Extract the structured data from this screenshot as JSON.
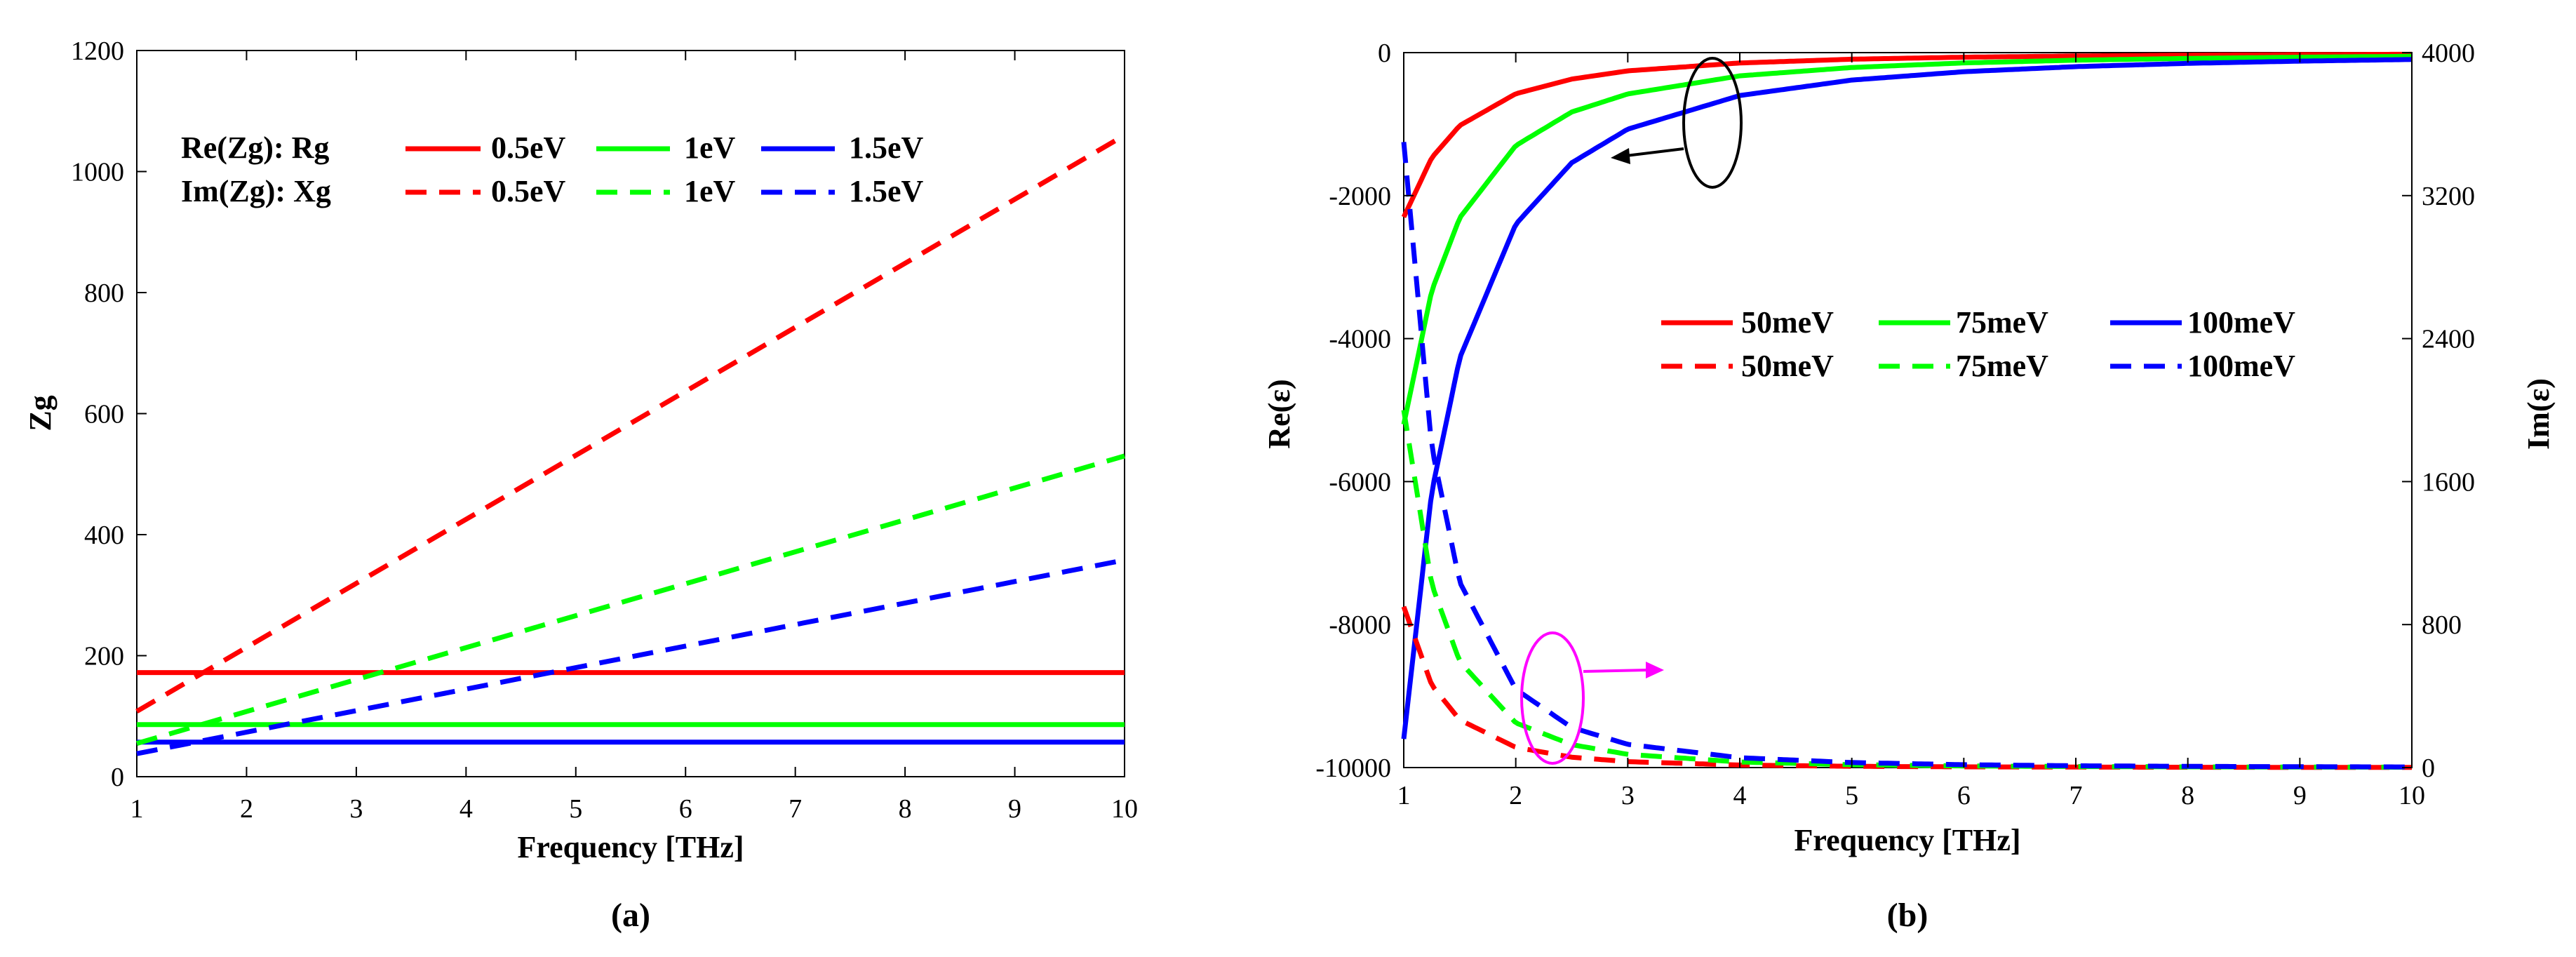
{
  "chart_data": [
    {
      "panel_label": "(a)",
      "type": "line",
      "xlabel": "Frequency [THz]",
      "ylabel": "Zg",
      "xlim": [
        1,
        10
      ],
      "ylim": [
        0,
        1200
      ],
      "xticks": [
        "1",
        "2",
        "3",
        "4",
        "5",
        "6",
        "7",
        "8",
        "9",
        "10"
      ],
      "yticks": [
        "0",
        "200",
        "400",
        "600",
        "800",
        "1000",
        "1200"
      ],
      "legend": {
        "row1_label": "Re(Zg): Rg",
        "row2_label": "Im(Zg): Xg",
        "entries": [
          "0.5eV",
          "1eV",
          "1.5eV"
        ]
      },
      "series": [
        {
          "name": "Rg 0.5eV",
          "style": "solid",
          "color": "#ff0000",
          "x": [
            1,
            10
          ],
          "y": [
            172,
            172
          ]
        },
        {
          "name": "Rg 1eV",
          "style": "solid",
          "color": "#00ff00",
          "x": [
            1,
            10
          ],
          "y": [
            86,
            86
          ]
        },
        {
          "name": "Rg 1.5eV",
          "style": "solid",
          "color": "#0000ff",
          "x": [
            1,
            10
          ],
          "y": [
            57,
            57
          ]
        },
        {
          "name": "Xg 0.5eV",
          "style": "dashed",
          "color": "#ff0000",
          "x": [
            1,
            10
          ],
          "y": [
            108,
            1060
          ]
        },
        {
          "name": "Xg 1eV",
          "style": "dashed",
          "color": "#00ff00",
          "x": [
            1,
            10
          ],
          "y": [
            55,
            530
          ]
        },
        {
          "name": "Xg 1.5eV",
          "style": "dashed",
          "color": "#0000ff",
          "x": [
            1,
            10
          ],
          "y": [
            38,
            358
          ]
        }
      ]
    },
    {
      "panel_label": "(b)",
      "type": "line",
      "xlabel": "Frequency [THz]",
      "ylabel_left": "Re(ε)",
      "ylabel_right": "Im(ε)",
      "xlim": [
        1,
        10
      ],
      "ylim_left": [
        -10000,
        0
      ],
      "ylim_right": [
        0,
        4000
      ],
      "xticks": [
        "1",
        "2",
        "3",
        "4",
        "5",
        "6",
        "7",
        "8",
        "9",
        "10"
      ],
      "yticks_left": [
        "-10000",
        "-8000",
        "-6000",
        "-4000",
        "-2000",
        "0"
      ],
      "yticks_right": [
        "0",
        "800",
        "1600",
        "2400",
        "3200",
        "4000"
      ],
      "legend": {
        "entries": [
          "50meV",
          "75meV",
          "100meV"
        ]
      },
      "series": [
        {
          "name": "Re 50meV",
          "axis": "left",
          "style": "solid",
          "color": "#ff0000",
          "x": [
            1,
            1.25,
            1.5,
            2,
            2.5,
            3,
            4,
            5,
            6,
            7,
            8,
            9,
            10
          ],
          "y": [
            -2300,
            -1470,
            -1020,
            -575,
            -370,
            -255,
            -145,
            -92,
            -64,
            -47,
            -36,
            -28,
            -23
          ]
        },
        {
          "name": "Re 75meV",
          "axis": "left",
          "style": "solid",
          "color": "#00ff00",
          "x": [
            1,
            1.25,
            1.5,
            2,
            2.5,
            3,
            4,
            5,
            6,
            7,
            8,
            9,
            10
          ],
          "y": [
            -5200,
            -3330,
            -2310,
            -1300,
            -830,
            -578,
            -325,
            -208,
            -144,
            -106,
            -81,
            -64,
            -52
          ]
        },
        {
          "name": "Re 100meV",
          "axis": "left",
          "style": "solid",
          "color": "#0000ff",
          "x": [
            1,
            1.25,
            1.5,
            2,
            2.5,
            3,
            4,
            5,
            6,
            7,
            8,
            9,
            10
          ],
          "y": [
            -9600,
            -6140,
            -4270,
            -2400,
            -1540,
            -1070,
            -600,
            -384,
            -267,
            -196,
            -150,
            -119,
            -96
          ]
        },
        {
          "name": "Im 50meV",
          "axis": "right",
          "style": "dashed",
          "color": "#ff0000",
          "x": [
            1,
            1.25,
            1.5,
            2,
            2.5,
            3,
            4,
            5,
            6,
            7,
            8,
            9,
            10
          ],
          "y": [
            900,
            461,
            267,
            113,
            58,
            33,
            14,
            7,
            4,
            2.6,
            1.8,
            1.2,
            0.9
          ]
        },
        {
          "name": "Im 75meV",
          "axis": "right",
          "style": "dashed",
          "color": "#00ff00",
          "x": [
            1,
            1.25,
            1.5,
            2,
            2.5,
            3,
            4,
            5,
            6,
            7,
            8,
            9,
            10
          ],
          "y": [
            2000,
            1024,
            593,
            250,
            128,
            74,
            31,
            16,
            9,
            5.8,
            3.9,
            2.7,
            2
          ]
        },
        {
          "name": "Im 100meV",
          "axis": "right",
          "style": "dashed",
          "color": "#0000ff",
          "x": [
            1,
            1.25,
            1.5,
            2,
            2.5,
            3,
            4,
            5,
            6,
            7,
            8,
            9,
            10
          ],
          "y": [
            3500,
            1792,
            1037,
            438,
            224,
            130,
            55,
            28,
            16,
            10,
            6.8,
            4.8,
            3.5
          ]
        }
      ]
    }
  ]
}
